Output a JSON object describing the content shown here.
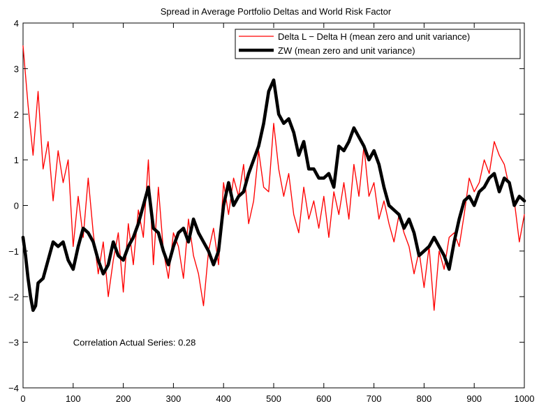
{
  "chart_data": {
    "type": "line",
    "title": "Spread in Average Portfolio Deltas and World Risk Factor",
    "xlabel": "",
    "ylabel": "",
    "xlim": [
      0,
      1000
    ],
    "ylim": [
      -4,
      4
    ],
    "xticks": [
      0,
      100,
      200,
      300,
      400,
      500,
      600,
      700,
      800,
      900,
      1000
    ],
    "yticks": [
      4,
      3,
      2,
      1,
      0,
      -1,
      -2,
      -3,
      -4
    ],
    "xtick_labels": [
      "0",
      "100",
      "200",
      "300",
      "400",
      "500",
      "600",
      "700",
      "800",
      "900",
      "1000"
    ],
    "ytick_labels": [
      "4",
      "3",
      "2",
      "1",
      "0",
      "−1",
      "−2",
      "−3",
      "−4"
    ],
    "grid": false,
    "legend_position": "top-right",
    "annotation": {
      "text": "Correlation Actual Series: 0.28",
      "x": 100,
      "y": -3
    },
    "series": [
      {
        "name": "Delta L − Delta H (mean zero and unit variance)",
        "color": "#ff0000",
        "style": "thin",
        "x": [
          0,
          10,
          20,
          30,
          40,
          50,
          60,
          70,
          80,
          90,
          100,
          110,
          120,
          130,
          140,
          150,
          160,
          170,
          180,
          190,
          200,
          210,
          220,
          230,
          240,
          250,
          260,
          270,
          280,
          290,
          300,
          310,
          320,
          330,
          340,
          350,
          360,
          370,
          380,
          390,
          400,
          410,
          420,
          430,
          440,
          450,
          460,
          470,
          480,
          490,
          500,
          510,
          520,
          530,
          540,
          550,
          560,
          570,
          580,
          590,
          600,
          610,
          620,
          630,
          640,
          650,
          660,
          670,
          680,
          690,
          700,
          710,
          720,
          730,
          740,
          750,
          760,
          770,
          780,
          790,
          800,
          810,
          820,
          830,
          840,
          850,
          860,
          870,
          880,
          890,
          900,
          910,
          920,
          930,
          940,
          950,
          960,
          970,
          980,
          990,
          1000
        ],
        "values": [
          3.5,
          2.2,
          1.1,
          2.5,
          0.8,
          1.4,
          0.1,
          1.2,
          0.5,
          1.0,
          -0.9,
          0.2,
          -0.7,
          0.6,
          -0.6,
          -1.5,
          -0.8,
          -2.0,
          -1.2,
          -0.6,
          -1.9,
          -0.4,
          -1.3,
          -0.1,
          -0.7,
          1.0,
          -1.3,
          0.4,
          -1.0,
          -1.6,
          -0.6,
          -0.9,
          -1.6,
          -0.3,
          -1.1,
          -1.5,
          -2.2,
          -1.0,
          -0.5,
          -1.3,
          0.5,
          -0.2,
          0.6,
          0.2,
          0.9,
          -0.4,
          0.1,
          1.2,
          0.4,
          0.3,
          1.8,
          0.8,
          0.2,
          0.7,
          -0.2,
          -0.6,
          0.4,
          -0.3,
          0.1,
          -0.5,
          0.2,
          -0.7,
          0.3,
          -0.2,
          0.5,
          -0.3,
          0.9,
          0.2,
          1.3,
          0.2,
          0.5,
          -0.3,
          0.1,
          -0.4,
          -0.8,
          -0.2,
          -0.6,
          -0.9,
          -1.5,
          -1.0,
          -1.8,
          -0.9,
          -2.3,
          -1.0,
          -1.4,
          -0.7,
          -0.6,
          -0.9,
          -0.2,
          0.6,
          0.3,
          0.5,
          1.0,
          0.7,
          1.4,
          1.1,
          0.9,
          0.4,
          0.1,
          -0.8,
          -0.2
        ]
      },
      {
        "name": "ZW (mean zero and unit variance)",
        "color": "#000000",
        "style": "thick",
        "x": [
          0,
          5,
          10,
          15,
          20,
          25,
          30,
          40,
          50,
          60,
          70,
          80,
          90,
          100,
          110,
          120,
          130,
          140,
          150,
          160,
          170,
          180,
          190,
          200,
          210,
          220,
          230,
          240,
          250,
          260,
          270,
          280,
          290,
          300,
          310,
          320,
          330,
          340,
          350,
          360,
          370,
          380,
          390,
          400,
          410,
          420,
          430,
          440,
          450,
          460,
          470,
          480,
          490,
          500,
          510,
          520,
          530,
          540,
          550,
          560,
          570,
          580,
          590,
          600,
          610,
          620,
          630,
          640,
          650,
          660,
          670,
          680,
          690,
          700,
          710,
          720,
          730,
          740,
          750,
          760,
          770,
          780,
          790,
          800,
          810,
          820,
          830,
          840,
          850,
          860,
          870,
          880,
          890,
          900,
          910,
          920,
          930,
          940,
          950,
          960,
          970,
          980,
          990,
          1000
        ],
        "values": [
          -0.7,
          -1.1,
          -1.6,
          -2.0,
          -2.3,
          -2.2,
          -1.7,
          -1.6,
          -1.2,
          -0.8,
          -0.9,
          -0.8,
          -1.2,
          -1.4,
          -0.9,
          -0.5,
          -0.6,
          -0.8,
          -1.2,
          -1.5,
          -1.3,
          -0.8,
          -1.1,
          -1.2,
          -0.9,
          -0.7,
          -0.4,
          0.0,
          0.4,
          -0.5,
          -0.6,
          -1.0,
          -1.3,
          -0.9,
          -0.6,
          -0.5,
          -0.8,
          -0.3,
          -0.6,
          -0.8,
          -1.0,
          -1.3,
          -1.0,
          0.0,
          0.5,
          0.0,
          0.2,
          0.3,
          0.7,
          1.0,
          1.3,
          1.8,
          2.5,
          2.75,
          2.0,
          1.8,
          1.9,
          1.6,
          1.1,
          1.4,
          0.8,
          0.8,
          0.6,
          0.6,
          0.7,
          0.4,
          1.3,
          1.2,
          1.4,
          1.7,
          1.5,
          1.3,
          1.0,
          1.2,
          0.9,
          0.4,
          0.0,
          -0.1,
          -0.2,
          -0.5,
          -0.3,
          -0.6,
          -1.1,
          -1.0,
          -0.9,
          -0.7,
          -0.9,
          -1.1,
          -1.4,
          -0.8,
          -0.3,
          0.1,
          0.2,
          0.0,
          0.3,
          0.4,
          0.6,
          0.7,
          0.3,
          0.6,
          0.5,
          0.0,
          0.2,
          0.1
        ]
      }
    ]
  }
}
